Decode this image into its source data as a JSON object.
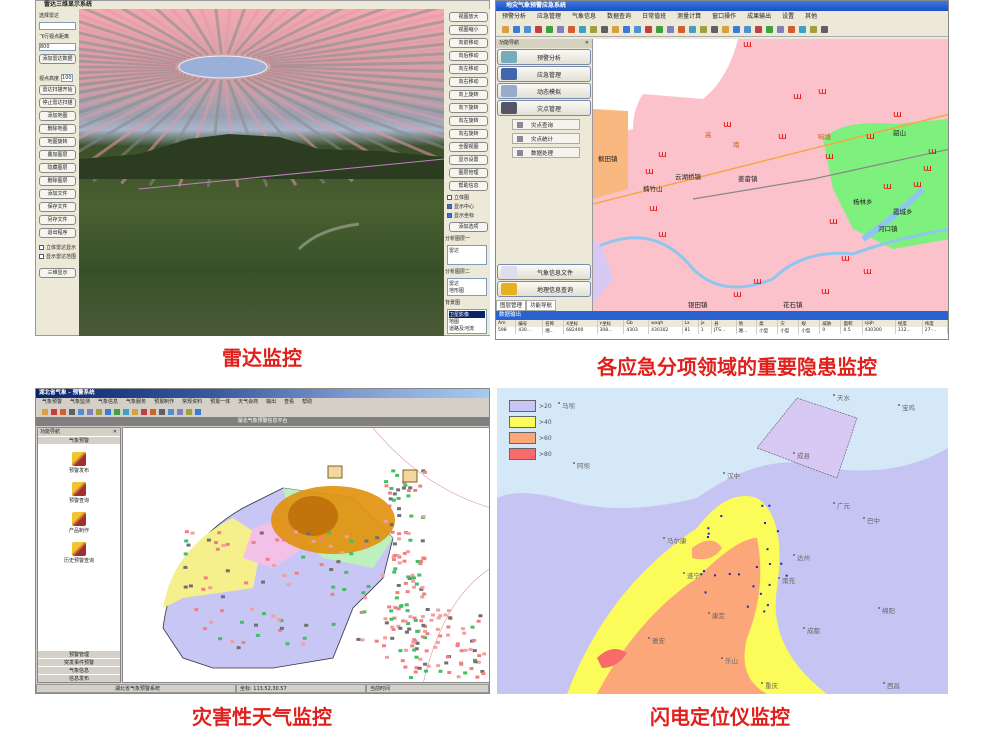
{
  "captions": {
    "radar": "雷达监控",
    "hazards": "各应急分项领域的重要隐患监控",
    "weather": "灾害性天气监控",
    "lightning": "闪电定位仪监控"
  },
  "radar_app": {
    "title": "雷达三维显示系统",
    "left_panel": {
      "select_label": "选择雷达",
      "select_value": "",
      "distance_label": "飞行视点距离",
      "distance_value": "800",
      "buttons_top": [
        "添加雷达数据"
      ],
      "height_label": "视点高度",
      "height_value": "100",
      "buttons": [
        "雷达扫描开始",
        "停止雷达扫描",
        "添加地图",
        "删除地图",
        "地图旋转",
        "叠加图层",
        "隐藏图层",
        "删除图层",
        "添加文件",
        "保存文件",
        "另存文件",
        "退出程序"
      ],
      "checkboxes": [
        "立体雷达显示",
        "显示雷达范围"
      ],
      "bottom_button": "三维显示"
    },
    "right_panel": {
      "buttons": [
        "视图放大",
        "视图缩小",
        "向前移动",
        "向后移动",
        "向左移动",
        "向右移动",
        "向上旋转",
        "向下旋转",
        "向左旋转",
        "向右旋转",
        "全图视图",
        "显示设置",
        "图层管理",
        "帮助信息"
      ],
      "checkboxes": [
        {
          "label": "立体图",
          "checked": false
        },
        {
          "label": "显示中心",
          "checked": true
        },
        {
          "label": "显示坐标",
          "checked": true
        }
      ],
      "apply_button": "添加选项",
      "group1_label": "分析图层一",
      "group1_items": [
        "雷达"
      ],
      "group2_label": "分析图层二",
      "group2_items": [
        "雷达",
        "地形图"
      ],
      "group3_label": "背景图",
      "group3_items": [
        "卫星影像",
        "地图",
        "道路及河流"
      ]
    }
  },
  "hazard_app": {
    "title": "地灾气象预警应急系统",
    "menu": [
      "预警分析",
      "应急管理",
      "气象信息",
      "数据查询",
      "日常值班",
      "测量计算",
      "窗口操作",
      "成果输出",
      "设置",
      "其他"
    ],
    "nav_title": "功能导航",
    "nav_buttons": [
      "预警分析",
      "应急管理",
      "动态模拟",
      "灾点管理"
    ],
    "sub_buttons": [
      "灾点查询",
      "灾点统计",
      "数据处理"
    ],
    "bottom_buttons": [
      "气象信息文件",
      "地理信息查询"
    ],
    "tabs": [
      "图层管理",
      "功能导航"
    ],
    "map_labels": [
      "枫田镇",
      "楠竹山",
      "云湖桥镇",
      "姜畲镇",
      "韶山",
      "银田镇",
      "杨林乡",
      "河口镇",
      "花石镇",
      "霞城乡",
      "响塘",
      "高",
      "南",
      "上"
    ],
    "output_title": "数据输出",
    "table": {
      "headers": [
        "Am",
        "编号",
        "名称",
        "X坐标",
        "Y坐标",
        "Gb",
        "wxqh",
        "Lx",
        "jx",
        "县",
        "地",
        "类",
        "灾",
        "规",
        "威胁",
        "面积",
        "sjqh",
        "经度",
        "纬度"
      ],
      "rows": [
        [
          "598",
          "430...",
          "湘...",
          "682400",
          "308...",
          "4303",
          "430302",
          "81",
          "1",
          "JTS...",
          "湘...",
          "小型",
          "小型",
          "小型",
          "0",
          "0.5",
          "430300",
          "112...",
          "27-..."
        ]
      ]
    }
  },
  "weather_app": {
    "title": "湖北省气象 - 预警系统",
    "menu": [
      "气象预警",
      "气象监测",
      "气象信息",
      "气象服务",
      "预报制作",
      "常规资料",
      "预报一体",
      "天气会商",
      "输出",
      "查看",
      "帮助"
    ],
    "view_title": "湖北气象预警信息平台",
    "side_title": "功能导航",
    "side_group_open": "气象预警",
    "side_items": [
      "预警发布",
      "预警查询",
      "产品制作",
      "历史预警查询"
    ],
    "side_groups": [
      "预警管理",
      "突发事件预警",
      "气象信息",
      "信息发布"
    ],
    "status": [
      "湖北省气象预警系统",
      "坐标: 113.52,30.57",
      "当前时间"
    ]
  },
  "lightning_map": {
    "legend": [
      {
        "label": ">20",
        "color": "#c8c6f4"
      },
      {
        "label": ">40",
        "color": "#fbfb5a"
      },
      {
        "label": ">60",
        "color": "#fba77a"
      },
      {
        "label": ">80",
        "color": "#f96a6a"
      }
    ],
    "places": [
      "马坝",
      "天水",
      "宝鸡",
      "成县",
      "汉中",
      "广元",
      "巴中",
      "达州",
      "南充",
      "绵阳",
      "成都",
      "遂宁",
      "雅安",
      "乐山",
      "重庆",
      "西昌",
      "马尔康",
      "康定",
      "阿坝"
    ]
  },
  "colors": {
    "caption": "#e0201c",
    "titlebar": "#1d4fc4",
    "map_pink": "#fbc2cc",
    "map_green": "#7ef07e"
  }
}
